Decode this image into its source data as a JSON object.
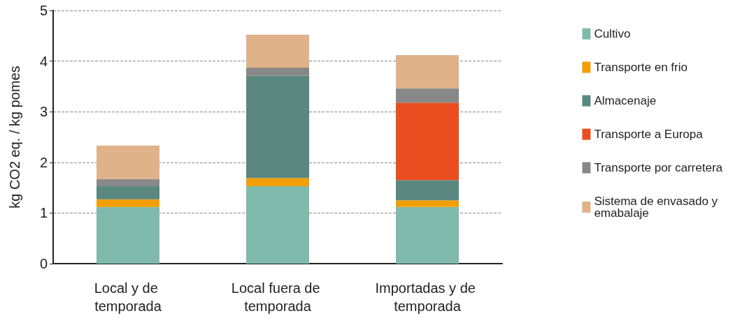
{
  "chart_data": {
    "type": "bar",
    "stacked": true,
    "ylabel": "kg CO2 eq. / kg pomes",
    "categories": [
      "Local y de temporada",
      "Local fuera de temporada",
      "Importadas y de temporada"
    ],
    "series": [
      {
        "name": "Cultivo",
        "color": "#7fbaad",
        "values": [
          1.12,
          1.53,
          1.12
        ]
      },
      {
        "name": "Transporte en frio",
        "color": "#f29e05",
        "values": [
          0.15,
          0.16,
          0.13
        ]
      },
      {
        "name": "Almacenaje",
        "color": "#5a8880",
        "values": [
          0.26,
          2.02,
          0.4
        ]
      },
      {
        "name": "Transporte a Europa",
        "color": "#e84e1f",
        "values": [
          null,
          null,
          1.53
        ]
      },
      {
        "name": "Transporte por carretera",
        "color": "#888888",
        "values": [
          0.14,
          0.16,
          0.28
        ]
      },
      {
        "name": "Sistema de envasado y emabalaje",
        "color": "#e0b289",
        "values": [
          0.66,
          0.65,
          0.66
        ]
      }
    ],
    "ylim": [
      0,
      5
    ],
    "yticks": [
      0,
      1,
      2,
      3,
      4,
      5
    ],
    "grid": "y",
    "legend": "right"
  }
}
